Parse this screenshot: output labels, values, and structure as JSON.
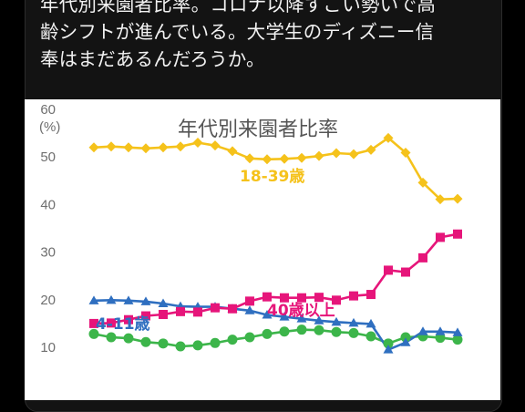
{
  "post": {
    "text_lines": [
      "年代別来園者比率。コロナ以降すごい勢いで高",
      "齢シフトが進んでいる。大学生のディズニー信",
      "奉はまだあるんだろうか。"
    ]
  },
  "colors": {
    "background": "#000000",
    "card": "#131313",
    "chart_background": "#ffffff",
    "series_18_39": "#f5c21b",
    "series_40_plus": "#e6157a",
    "series_4_11": "#2f6fc0",
    "series_green": "#3cb54a"
  },
  "chart_data": {
    "type": "line",
    "title": "年代別来園者比率",
    "ylabel": "(%)",
    "xlabel": "",
    "ylim": [
      0,
      60
    ],
    "y_ticks": [
      "60",
      "50",
      "40",
      "30",
      "20",
      "10"
    ],
    "grid": false,
    "annotations": [
      {
        "text": "18-39歳",
        "series": "18-39歳"
      },
      {
        "text": "40歳以上",
        "series": "40歳以上"
      },
      {
        "text": "4-11歳",
        "series": "4-11歳"
      }
    ],
    "series": [
      {
        "name": "18-39歳",
        "color": "#f5c21b",
        "marker": "diamond",
        "values": [
          52,
          52.2,
          52,
          51.8,
          52,
          52.2,
          53,
          52.4,
          51.2,
          49.7,
          49.5,
          49.6,
          49.8,
          50.2,
          50.8,
          50.6,
          51.5,
          54,
          50.9,
          44.6,
          41.1,
          41.2
        ]
      },
      {
        "name": "40歳以上",
        "color": "#e6157a",
        "marker": "square",
        "values": [
          15,
          15.1,
          15.8,
          16.6,
          16.9,
          17.5,
          17.4,
          18.3,
          18.1,
          19.7,
          20.6,
          20.4,
          20.4,
          20.5,
          19.9,
          20.8,
          21.1,
          26.2,
          25.8,
          28.8,
          33.1,
          33.8
        ]
      },
      {
        "name": "4-11歳",
        "color": "#2f6fc0",
        "marker": "triangle",
        "values": [
          19.8,
          19.9,
          19.8,
          19.6,
          19.2,
          18.6,
          18.5,
          18.5,
          18.1,
          17.7,
          16.8,
          16.4,
          16,
          15.6,
          15.3,
          15.1,
          14.9,
          9.5,
          11,
          13.3,
          13.3,
          13.1
        ]
      },
      {
        "name": "",
        "color": "#3cb54a",
        "marker": "circle",
        "values": [
          12.8,
          12.1,
          11.9,
          11.1,
          10.8,
          10.2,
          10.4,
          10.9,
          11.6,
          12.1,
          12.8,
          13.3,
          13.7,
          13.6,
          13.2,
          13,
          12.3,
          10.8,
          12.1,
          12.3,
          12,
          11.6
        ]
      }
    ]
  }
}
